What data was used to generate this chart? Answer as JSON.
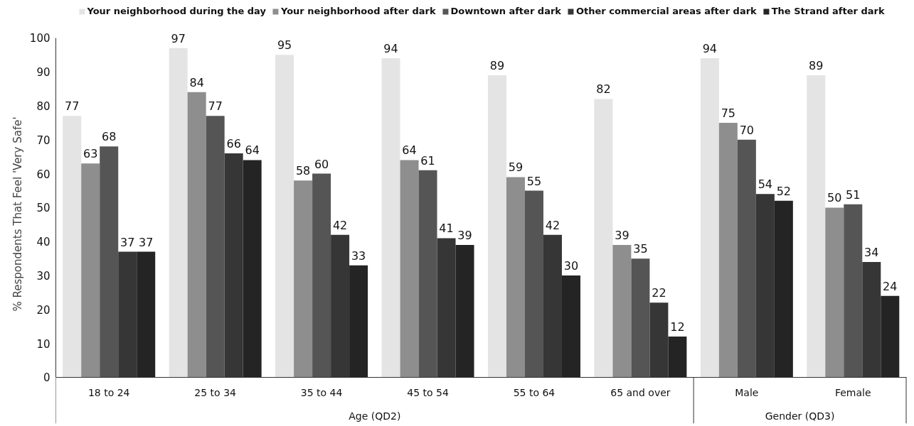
{
  "chart_data": {
    "type": "bar",
    "ylabel": "% Respondents That Feel 'Very Safe'",
    "categories": [
      "18 to 24",
      "25 to 34",
      "35 to 44",
      "45 to 54",
      "55 to 64",
      "65 and over",
      "Male",
      "Female"
    ],
    "series": [
      {
        "name": "Your neighborhood during the day",
        "color": "#e4e4e4",
        "values": [
          77,
          97,
          95,
          94,
          89,
          82,
          94,
          89
        ]
      },
      {
        "name": "Your neighborhood after dark",
        "color": "#8e8e8e",
        "values": [
          63,
          84,
          58,
          64,
          59,
          39,
          75,
          50
        ]
      },
      {
        "name": "Downtown after dark",
        "color": "#555555",
        "values": [
          68,
          77,
          60,
          61,
          55,
          35,
          70,
          51
        ]
      },
      {
        "name": "Other commercial areas after dark",
        "color": "#363636",
        "values": [
          37,
          66,
          42,
          41,
          42,
          22,
          54,
          34
        ]
      },
      {
        "name": "The Strand after dark",
        "color": "#242424",
        "values": [
          37,
          64,
          33,
          39,
          30,
          12,
          52,
          24
        ]
      }
    ],
    "ylim": [
      0,
      100
    ],
    "yticks": [
      0,
      10,
      20,
      30,
      40,
      50,
      60,
      70,
      80,
      90,
      100
    ],
    "data_labels": true,
    "legend": "top",
    "grid": false,
    "annotations": [
      "Age (QD2)",
      "Gender (QD3)"
    ]
  }
}
